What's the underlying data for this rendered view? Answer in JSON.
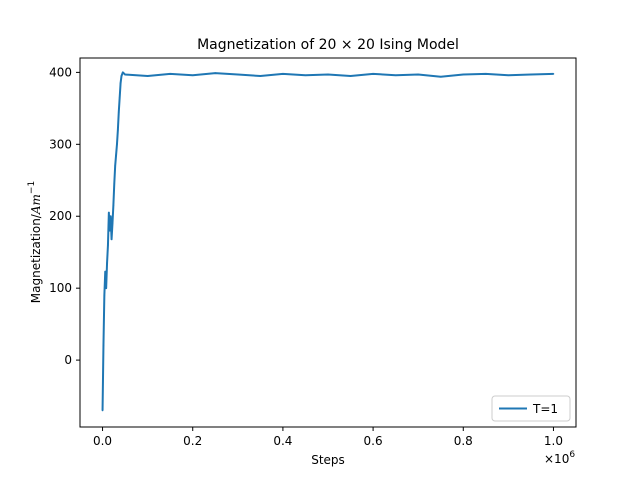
{
  "chart_data": {
    "type": "line",
    "title": "Magnetization of 20 × 20 Ising Model",
    "xlabel": "Steps",
    "ylabel": "Magnetization/",
    "ylabel_unit": "Am",
    "ylabel_unit_exp": "−1",
    "x_offset_text": "×10",
    "x_offset_exp": "6",
    "xlim": [
      -0.05,
      1.05
    ],
    "ylim": [
      -93,
      420
    ],
    "x_ticks": [
      0.0,
      0.2,
      0.4,
      0.6,
      0.8,
      1.0
    ],
    "x_tick_labels": [
      "0.0",
      "0.2",
      "0.4",
      "0.6",
      "0.8",
      "1.0"
    ],
    "y_ticks": [
      0,
      100,
      200,
      300,
      400
    ],
    "y_tick_labels": [
      "0",
      "100",
      "200",
      "300",
      "400"
    ],
    "grid": false,
    "legend_position": "lower right",
    "series": [
      {
        "name": "T=1",
        "color": "#1f77b4",
        "x": [
          0.0,
          0.002,
          0.004,
          0.006,
          0.008,
          0.01,
          0.012,
          0.014,
          0.016,
          0.018,
          0.02,
          0.022,
          0.024,
          0.026,
          0.028,
          0.03,
          0.032,
          0.034,
          0.036,
          0.038,
          0.04,
          0.042,
          0.045,
          0.05,
          0.1,
          0.15,
          0.2,
          0.25,
          0.3,
          0.35,
          0.4,
          0.45,
          0.5,
          0.55,
          0.6,
          0.65,
          0.7,
          0.75,
          0.8,
          0.85,
          0.9,
          0.95,
          1.0
        ],
        "y": [
          -70,
          20,
          90,
          123,
          100,
          135,
          160,
          205,
          180,
          200,
          168,
          190,
          215,
          245,
          270,
          285,
          300,
          320,
          345,
          365,
          385,
          395,
          400,
          397,
          395,
          398,
          396,
          399,
          397,
          395,
          398,
          396,
          397,
          395,
          398,
          396,
          397,
          394,
          397,
          398,
          396,
          397,
          398
        ]
      }
    ]
  }
}
